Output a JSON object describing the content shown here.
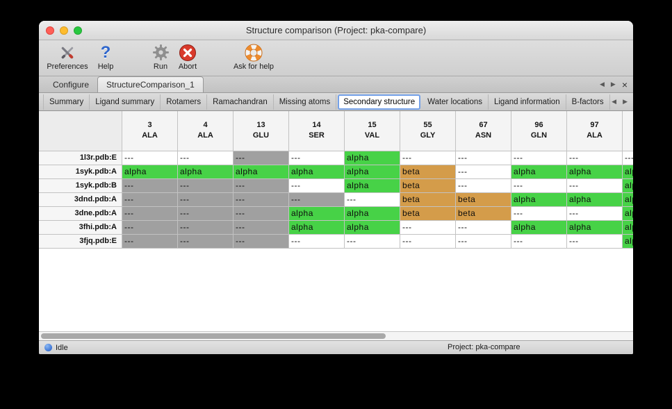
{
  "window": {
    "title": "Structure comparison (Project: pka-compare)"
  },
  "toolbar": {
    "items": [
      {
        "label": "Preferences",
        "icon": "crossed-tools"
      },
      {
        "label": "Help",
        "icon": "blue-question-mark"
      },
      {
        "label": "Run",
        "icon": "gear"
      },
      {
        "label": "Abort",
        "icon": "red-circle-x"
      },
      {
        "label": "Ask for help",
        "icon": "life-ring"
      }
    ]
  },
  "document_tabs": {
    "tabs": [
      {
        "label": "Configure",
        "selected": false
      },
      {
        "label": "StructureComparison_1",
        "selected": true
      }
    ]
  },
  "view_tabs": {
    "tabs": [
      {
        "label": "Summary",
        "selected": false
      },
      {
        "label": "Ligand summary",
        "selected": false
      },
      {
        "label": "Rotamers",
        "selected": false
      },
      {
        "label": "Ramachandran",
        "selected": false
      },
      {
        "label": "Missing atoms",
        "selected": false
      },
      {
        "label": "Secondary structure",
        "selected": true
      },
      {
        "label": "Water locations",
        "selected": false
      },
      {
        "label": "Ligand information",
        "selected": false
      },
      {
        "label": "B-factors",
        "selected": false
      }
    ]
  },
  "icons": {
    "tab_back": "◀",
    "tab_forward": "▶",
    "tab_close": "×",
    "help_glyph": "?"
  },
  "table": {
    "columns": [
      {
        "num": "3",
        "res": "ALA"
      },
      {
        "num": "4",
        "res": "ALA"
      },
      {
        "num": "13",
        "res": "GLU"
      },
      {
        "num": "14",
        "res": "SER"
      },
      {
        "num": "15",
        "res": "VAL"
      },
      {
        "num": "55",
        "res": "GLY"
      },
      {
        "num": "67",
        "res": "ASN"
      },
      {
        "num": "96",
        "res": "GLN"
      },
      {
        "num": "97",
        "res": "ALA"
      },
      {
        "num": "",
        "res": ""
      }
    ],
    "cell_types": {
      "p": {
        "text": "---",
        "bg": "#ffffff"
      },
      "m": {
        "text": "---",
        "bg": "#a0a0a0"
      },
      "a": {
        "text": "alpha",
        "bg": "#47d247"
      },
      "b": {
        "text": "beta",
        "bg": "#d49c4a"
      }
    },
    "rows": [
      {
        "label": "1l3r.pdb:E",
        "cells": [
          "p",
          "p",
          "m",
          "p",
          "a",
          "p",
          "p",
          "p",
          "p",
          "p"
        ]
      },
      {
        "label": "1syk.pdb:A",
        "cells": [
          "a",
          "a",
          "a",
          "a",
          "a",
          "b",
          "p",
          "a",
          "a",
          "a"
        ]
      },
      {
        "label": "1syk.pdb:B",
        "cells": [
          "m",
          "m",
          "m",
          "p",
          "a",
          "b",
          "p",
          "p",
          "p",
          "a"
        ]
      },
      {
        "label": "3dnd.pdb:A",
        "cells": [
          "m",
          "m",
          "m",
          "m",
          "p",
          "b",
          "b",
          "a",
          "a",
          "a"
        ]
      },
      {
        "label": "3dne.pdb:A",
        "cells": [
          "m",
          "m",
          "m",
          "a",
          "a",
          "b",
          "b",
          "p",
          "p",
          "a"
        ]
      },
      {
        "label": "3fhi.pdb:A",
        "cells": [
          "m",
          "m",
          "m",
          "a",
          "a",
          "p",
          "p",
          "a",
          "a",
          "a"
        ]
      },
      {
        "label": "3fjq.pdb:E",
        "cells": [
          "m",
          "m",
          "m",
          "p",
          "p",
          "p",
          "p",
          "p",
          "p",
          "a"
        ]
      }
    ]
  },
  "statusbar": {
    "status": "Idle",
    "project": "Project: pka-compare"
  }
}
